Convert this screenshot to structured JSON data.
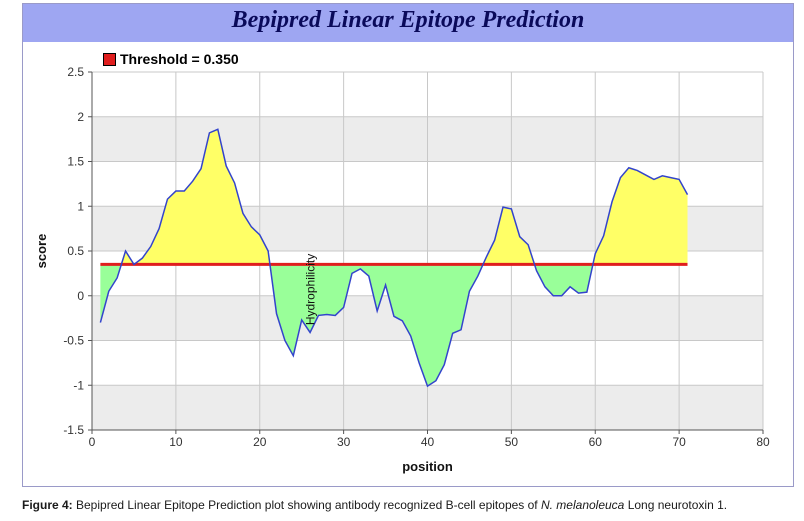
{
  "chart_data": {
    "type": "area",
    "title": "Bepipred Linear Epitope Prediction",
    "xlabel": "position",
    "ylabel": "score",
    "annotation": "Hydrophilicity",
    "legend": [
      {
        "label": "Threshold = 0.350",
        "color": "#e01e1e"
      }
    ],
    "legend_position": "top-left",
    "threshold": 0.35,
    "xlim": [
      0,
      80
    ],
    "ylim": [
      -1.5,
      2.5
    ],
    "xticks": [
      0,
      10,
      20,
      30,
      40,
      50,
      60,
      70,
      80
    ],
    "yticks": [
      2.5,
      2,
      1.5,
      1,
      0.5,
      0,
      -0.5,
      -1,
      -1.5
    ],
    "ytick_labels": [
      "2.5",
      "2",
      "1.5",
      "1",
      "0.5",
      "0",
      "-0.5",
      "-1",
      "-1.5"
    ],
    "grid": true,
    "colors": {
      "line": "#3344cc",
      "threshold": "#e01e1e",
      "above": "#ffff66",
      "below": "#99ff99",
      "band": "#ececec",
      "grid": "#c8c8c8"
    },
    "x": [
      1,
      2,
      3,
      4,
      5,
      6,
      7,
      8,
      9,
      10,
      11,
      12,
      13,
      14,
      15,
      16,
      17,
      18,
      19,
      20,
      21,
      22,
      23,
      24,
      25,
      26,
      27,
      28,
      29,
      30,
      31,
      32,
      33,
      34,
      35,
      36,
      37,
      38,
      39,
      40,
      41,
      42,
      43,
      44,
      45,
      46,
      47,
      48,
      49,
      50,
      51,
      52,
      53,
      54,
      55,
      56,
      57,
      58,
      59,
      60,
      61,
      62,
      63,
      64,
      65,
      66,
      67,
      68,
      69,
      70,
      71
    ],
    "y": [
      -0.3,
      0.05,
      0.2,
      0.5,
      0.35,
      0.42,
      0.55,
      0.75,
      1.08,
      1.17,
      1.17,
      1.28,
      1.42,
      1.82,
      1.86,
      1.45,
      1.26,
      0.92,
      0.77,
      0.68,
      0.5,
      -0.2,
      -0.5,
      -0.67,
      -0.27,
      -0.41,
      -0.22,
      -0.21,
      -0.22,
      -0.13,
      0.25,
      0.3,
      0.22,
      -0.17,
      0.12,
      -0.23,
      -0.28,
      -0.45,
      -0.75,
      -1.01,
      -0.95,
      -0.77,
      -0.42,
      -0.38,
      0.05,
      0.22,
      0.43,
      0.62,
      0.99,
      0.97,
      0.66,
      0.57,
      0.28,
      0.1,
      0.0,
      0.0,
      0.1,
      0.03,
      0.04,
      0.47,
      0.67,
      1.05,
      1.32,
      1.43,
      1.4,
      1.35,
      1.3,
      1.34,
      1.32,
      1.3,
      1.13
    ]
  },
  "caption": {
    "label": "Figure 4:",
    "text1": " Bepipred Linear Epitope Prediction plot showing antibody recognized B-cell epitopes of ",
    "species": "N. melanoleuca",
    "text2": " Long neurotoxin 1."
  }
}
